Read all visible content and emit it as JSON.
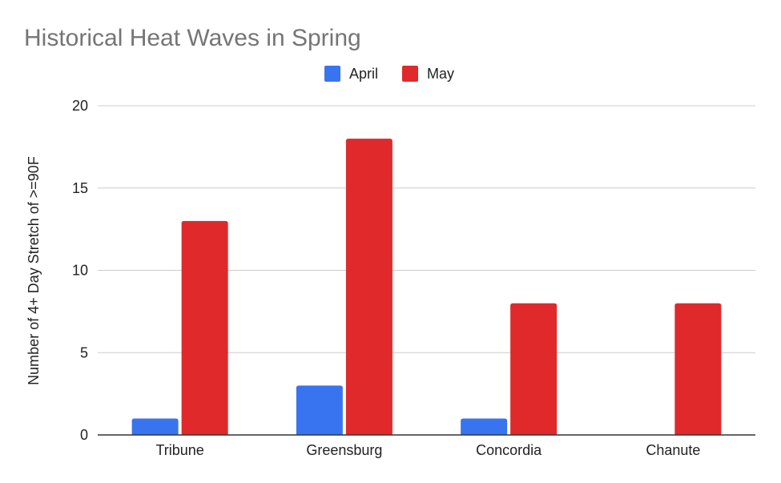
{
  "chart_data": {
    "type": "bar",
    "title": "Historical Heat Waves in Spring",
    "xlabel": "",
    "ylabel": "Number of 4+ Day Stretch of >=90F",
    "categories": [
      "Tribune",
      "Greensburg",
      "Concordia",
      "Chanute"
    ],
    "series": [
      {
        "name": "April",
        "values": [
          1,
          3,
          1,
          0
        ],
        "color": "#3874f0"
      },
      {
        "name": "May",
        "values": [
          13,
          18,
          8,
          8
        ],
        "color": "#e0292b"
      }
    ],
    "ylim": [
      0,
      20
    ],
    "yticks": [
      0,
      5,
      10,
      15,
      20
    ],
    "grid": true,
    "legend_position": "top"
  }
}
